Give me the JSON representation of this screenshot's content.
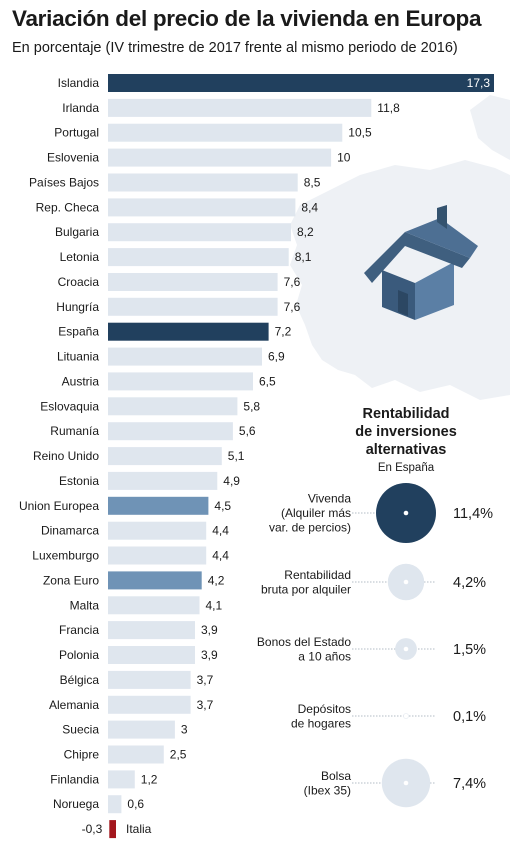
{
  "title": "Variación del precio de la vivienda en Europa",
  "subtitle": "En porcentaje (IV trimestre de 2017 frente al mismo periodo de 2016)",
  "colors": {
    "bar_default": "#dfe6ee",
    "bar_highlight": "#21405e",
    "bar_mid": "#6f93b6",
    "bar_negative": "#a3161d",
    "map": "#eef1f5",
    "house_roof": "#3f5f7f",
    "house_wall": "#5b7fa5",
    "bubble_dark": "#21405e",
    "bubble_light": "#dfe6ee"
  },
  "icons": [
    "house-icon",
    "europe-map"
  ],
  "chart_data": [
    {
      "type": "bar",
      "orientation": "horizontal",
      "categories": [
        "Islandia",
        "Irlanda",
        "Portugal",
        "Eslovenia",
        "Países Bajos",
        "Rep. Checa",
        "Bulgaria",
        "Letonia",
        "Croacia",
        "Hungría",
        "España",
        "Lituania",
        "Austria",
        "Eslovaquia",
        "Rumanía",
        "Reino Unido",
        "Estonia",
        "Union Europea",
        "Dinamarca",
        "Luxemburgo",
        "Zona Euro",
        "Malta",
        "Francia",
        "Polonia",
        "Bélgica",
        "Alemania",
        "Suecia",
        "Chipre",
        "Finlandia",
        "Noruega",
        "Italia"
      ],
      "values": [
        17.3,
        11.8,
        10.5,
        10,
        8.5,
        8.4,
        8.2,
        8.1,
        7.6,
        7.6,
        7.2,
        6.9,
        6.5,
        5.8,
        5.6,
        5.1,
        4.9,
        4.5,
        4.4,
        4.4,
        4.2,
        4.1,
        3.9,
        3.9,
        3.7,
        3.7,
        3,
        2.5,
        1.2,
        0.6,
        -0.3
      ],
      "value_labels": [
        "17,3",
        "11,8",
        "10,5",
        "10",
        "8,5",
        "8,4",
        "8,2",
        "8,1",
        "7,6",
        "7,6",
        "7,2",
        "6,9",
        "6,5",
        "5,8",
        "5,6",
        "5,1",
        "4,9",
        "4,5",
        "4,4",
        "4,4",
        "4,2",
        "4,1",
        "3,9",
        "3,9",
        "3,7",
        "3,7",
        "3",
        "2,5",
        "1,2",
        "0,6",
        "-0,3"
      ],
      "highlight": {
        "Islandia": "dark",
        "España": "dark",
        "Union Europea": "mid",
        "Zona Euro": "mid",
        "Italia": "negative"
      },
      "xlim": [
        -0.3,
        17.3
      ],
      "grid": false,
      "legend": "none"
    },
    {
      "type": "bubble",
      "title": [
        "Rentabilidad",
        "de inversiones",
        "alternativas"
      ],
      "subtitle": "En España",
      "items": [
        {
          "label": [
            "Vivenda",
            "(Alquiler más",
            "var. de percios)"
          ],
          "value": 11.4,
          "value_label": "11,4%",
          "style": "dark"
        },
        {
          "label": [
            "Rentabilidad",
            "bruta por alquiler"
          ],
          "value": 4.2,
          "value_label": "4,2%",
          "style": "light"
        },
        {
          "label": [
            "Bonos del Estado",
            "a 10 años"
          ],
          "value": 1.5,
          "value_label": "1,5%",
          "style": "light"
        },
        {
          "label": [
            "Depósitos",
            "de hogares"
          ],
          "value": 0.1,
          "value_label": "0,1%",
          "style": "light"
        },
        {
          "label": [
            "Bolsa",
            "(Ibex 35)"
          ],
          "value": 7.4,
          "value_label": "7,4%",
          "style": "light"
        }
      ]
    }
  ]
}
